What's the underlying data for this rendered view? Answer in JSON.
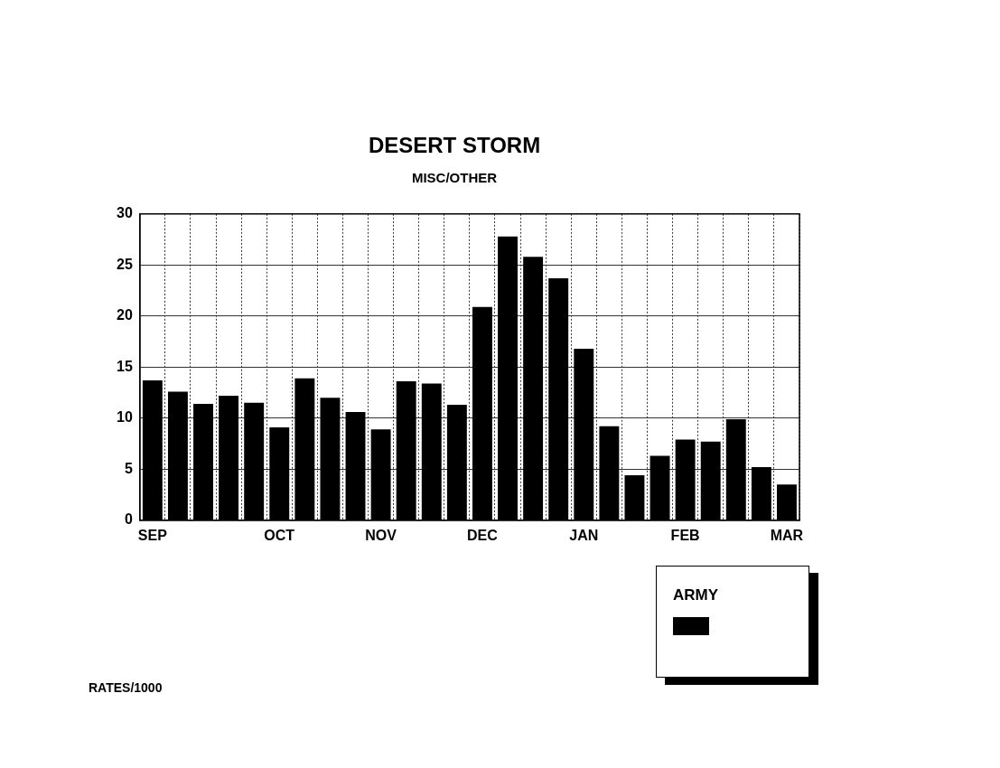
{
  "chart_data": {
    "type": "bar",
    "title": "DESERT STORM",
    "subtitle": "MISC/OTHER",
    "categories": [
      "SEP",
      null,
      null,
      null,
      null,
      "OCT",
      null,
      null,
      null,
      "NOV",
      null,
      null,
      null,
      "DEC",
      null,
      null,
      null,
      "JAN",
      null,
      null,
      null,
      "FEB",
      null,
      null,
      null,
      "MAR"
    ],
    "series": [
      {
        "name": "ARMY",
        "color": "#000000",
        "values": [
          13.7,
          12.6,
          11.4,
          12.2,
          11.5,
          9.1,
          13.9,
          12.0,
          10.6,
          8.9,
          13.6,
          13.4,
          11.3,
          20.9,
          27.8,
          25.8,
          23.7,
          16.8,
          9.2,
          4.4,
          6.3,
          7.9,
          7.7,
          9.9,
          5.2,
          3.5
        ]
      }
    ],
    "ylim": [
      0,
      30
    ],
    "yticks": [
      0,
      5,
      10,
      15,
      20,
      25,
      30
    ],
    "grid": true,
    "legend": "bottom right",
    "annotations": [
      "RATES/1000"
    ]
  }
}
